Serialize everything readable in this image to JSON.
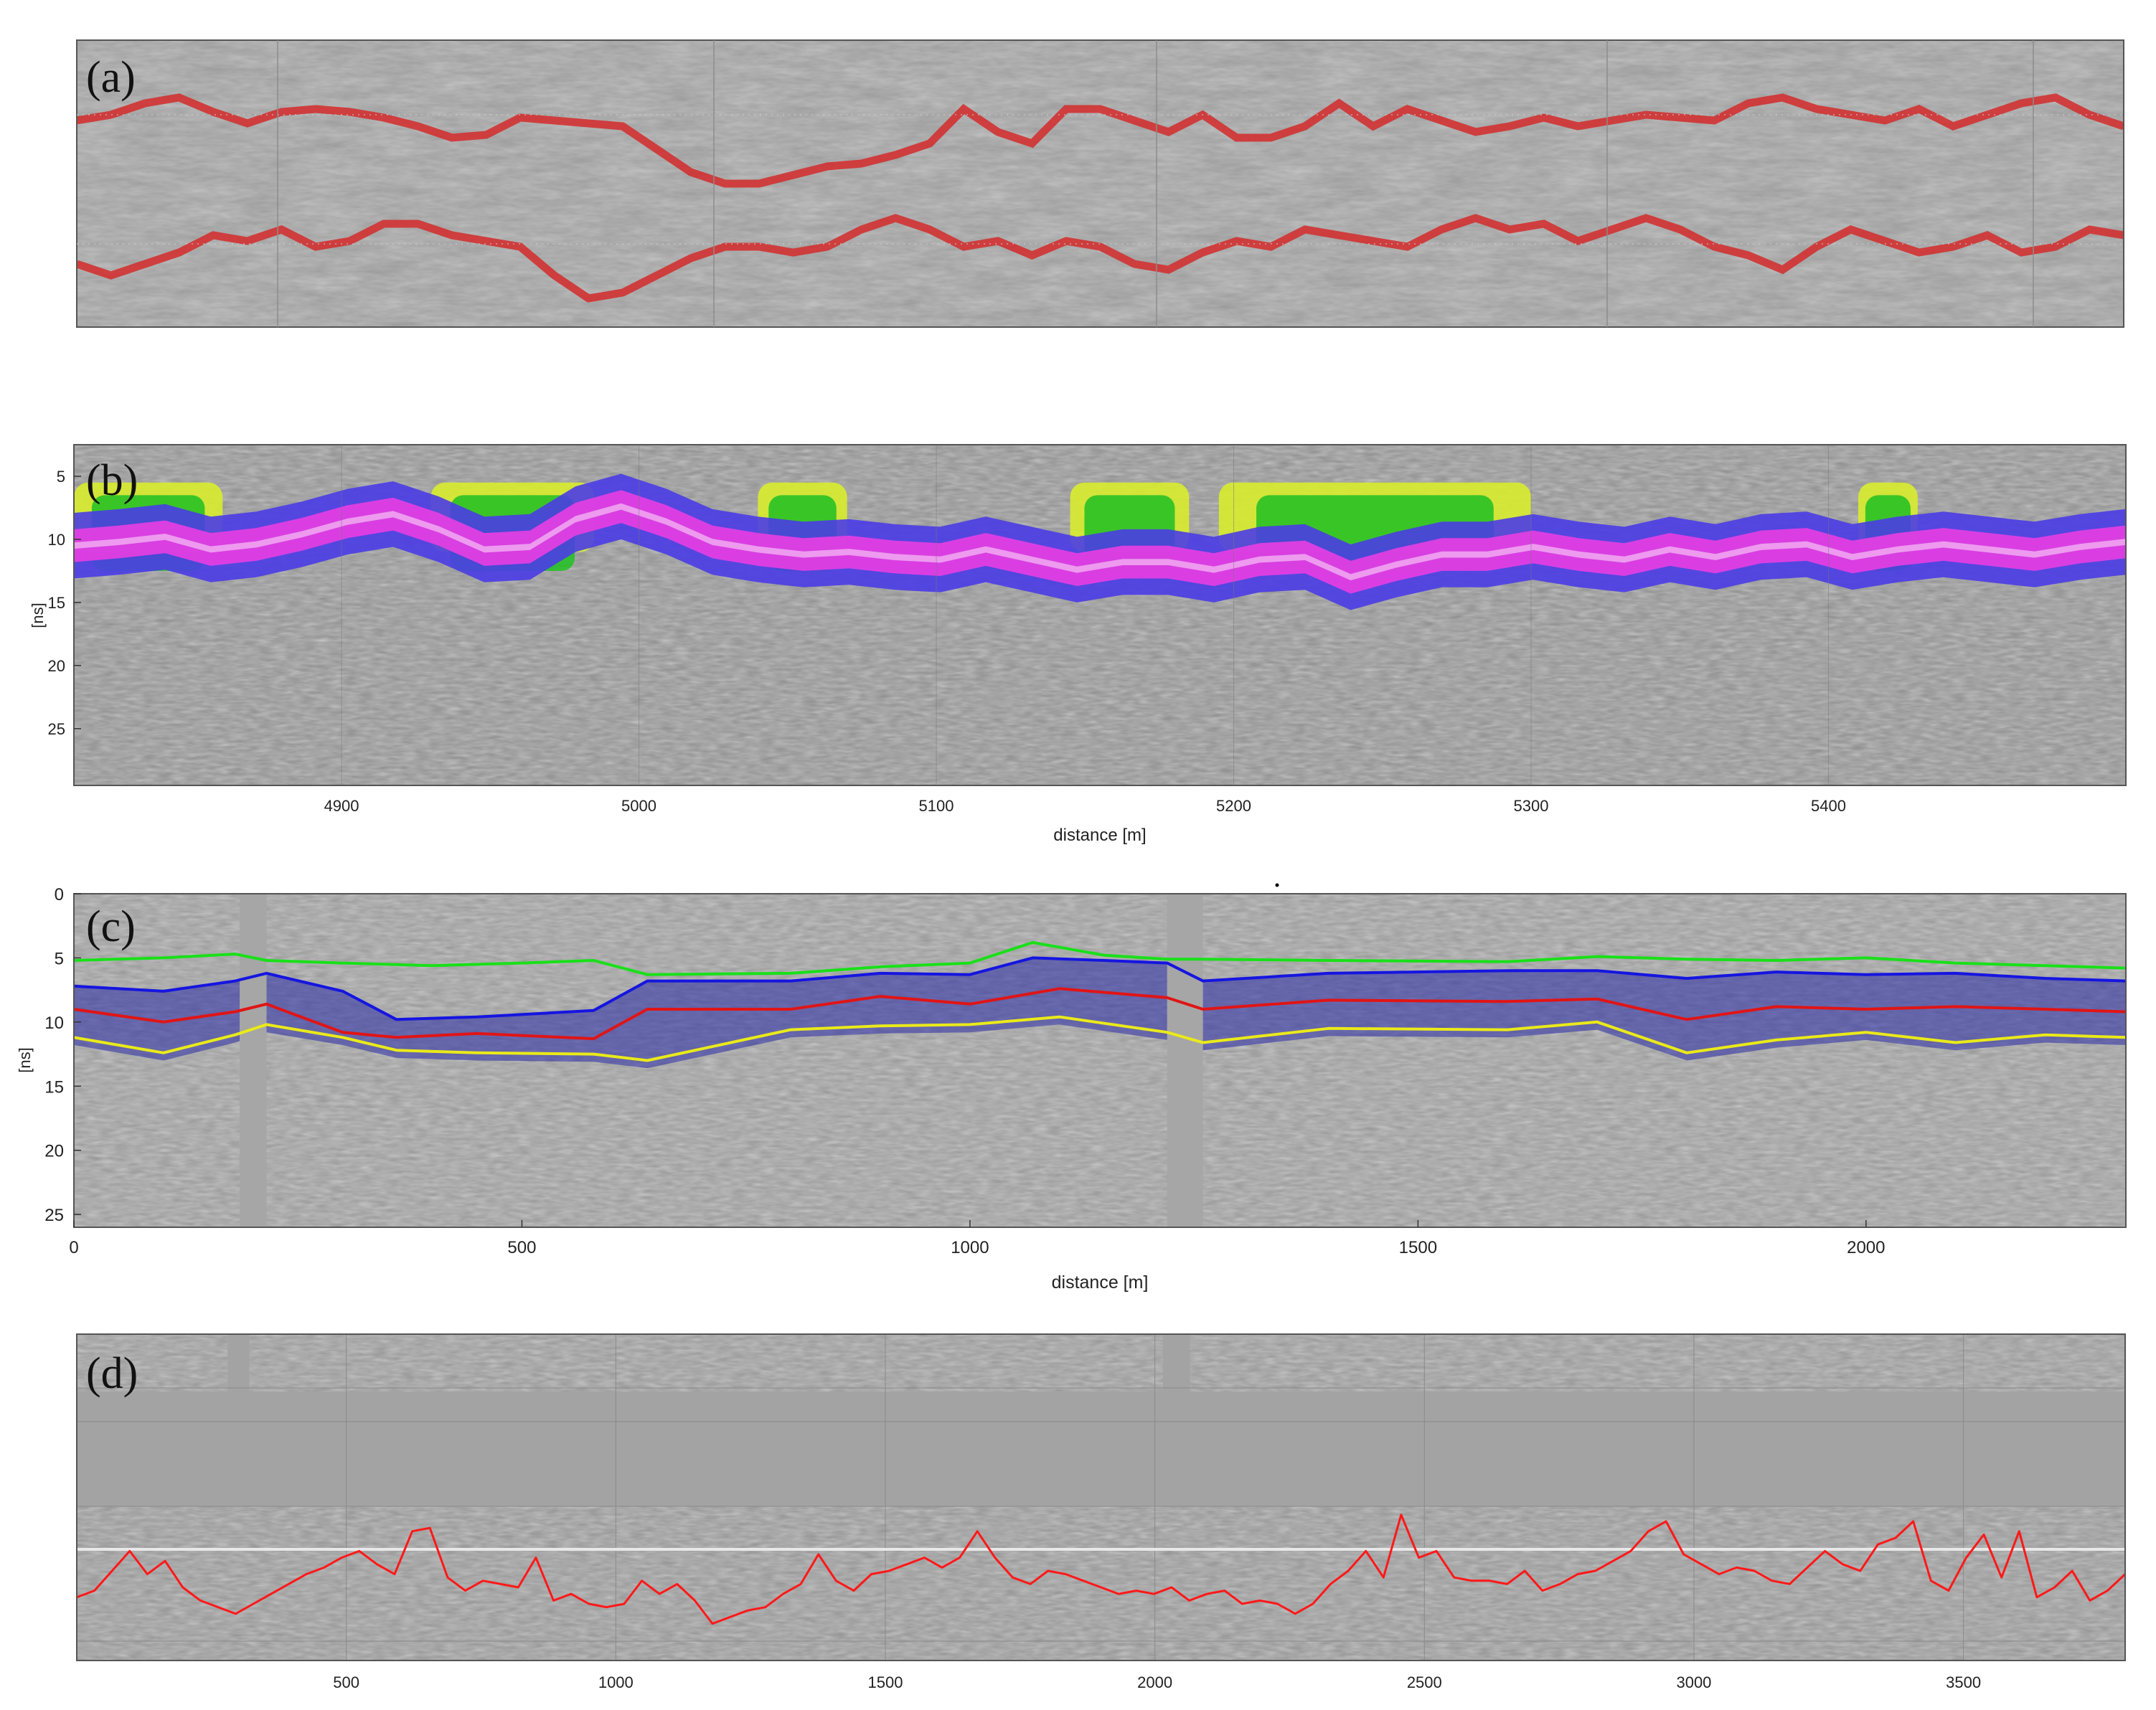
{
  "chart_data": [
    {
      "panel": "(a)",
      "type": "line",
      "background": "gpr-radargram-grayscale-banded",
      "series": [
        {
          "color": "#d42a2a",
          "y": [
            0.28,
            0.26,
            0.22,
            0.2,
            0.25,
            0.29,
            0.25,
            0.24,
            0.25,
            0.27,
            0.3,
            0.34,
            0.33,
            0.27,
            0.28,
            0.29,
            0.3,
            0.38,
            0.46,
            0.5,
            0.5,
            0.47,
            0.44,
            0.43,
            0.4,
            0.36,
            0.24,
            0.32,
            0.36,
            0.24,
            0.24,
            0.28,
            0.32,
            0.26,
            0.34,
            0.34,
            0.3,
            0.22,
            0.3,
            0.24,
            0.28,
            0.32,
            0.3,
            0.27,
            0.3,
            0.28,
            0.26,
            0.27,
            0.28,
            0.22,
            0.2,
            0.24,
            0.26,
            0.28,
            0.24,
            0.3,
            0.26,
            0.22,
            0.2,
            0.26,
            0.3
          ]
        },
        {
          "color": "#d42a2a",
          "y": [
            0.78,
            0.82,
            0.78,
            0.74,
            0.68,
            0.7,
            0.66,
            0.72,
            0.7,
            0.64,
            0.64,
            0.68,
            0.7,
            0.72,
            0.82,
            0.9,
            0.88,
            0.82,
            0.76,
            0.72,
            0.72,
            0.74,
            0.72,
            0.66,
            0.62,
            0.66,
            0.72,
            0.7,
            0.75,
            0.7,
            0.72,
            0.78,
            0.8,
            0.74,
            0.7,
            0.72,
            0.66,
            0.68,
            0.7,
            0.72,
            0.66,
            0.62,
            0.66,
            0.64,
            0.7,
            0.66,
            0.62,
            0.66,
            0.72,
            0.75,
            0.8,
            0.72,
            0.66,
            0.7,
            0.74,
            0.72,
            0.68,
            0.74,
            0.72,
            0.66,
            0.68
          ]
        }
      ]
    },
    {
      "panel": "(b)",
      "type": "heatmap",
      "xlabel": "distance [m]",
      "ylabel": "[ns]",
      "xlim": [
        4810,
        5500
      ],
      "ylim": [
        29.5,
        2.5
      ],
      "xticks": [
        "4900",
        "5000",
        "5100",
        "5200",
        "5300",
        "5400"
      ],
      "yticks": [
        "5",
        "10",
        "15",
        "20",
        "25"
      ],
      "colors": [
        "#d8ec2c",
        "#24c024",
        "#4a3ce6",
        "#e23ee2"
      ],
      "layer_center_ns": [
        10.5,
        10.2,
        9.8,
        10.8,
        10.4,
        9.6,
        8.6,
        8,
        9.2,
        10.8,
        10.6,
        8.4,
        7.4,
        8.6,
        10.2,
        10.8,
        11.2,
        11,
        11.4,
        11.6,
        10.8,
        11.6,
        12.4,
        11.8,
        11.8,
        12.4,
        11.6,
        11.4,
        13,
        12,
        11.2,
        11.2,
        10.6,
        11.2,
        11.6,
        10.8,
        11.4,
        10.6,
        10.4,
        11.4,
        10.8,
        10.4,
        10.8,
        11.2,
        10.6,
        10.2
      ],
      "clutter_segments_m": [
        [
          4810,
          4860
        ],
        [
          4930,
          4985
        ],
        [
          5040,
          5070
        ],
        [
          5145,
          5185
        ],
        [
          5195,
          5300
        ],
        [
          5410,
          5430
        ]
      ]
    },
    {
      "panel": "(c)",
      "type": "line",
      "xlabel": "distance [m]",
      "ylabel": "[ns]",
      "xlim": [
        0,
        2290
      ],
      "ylim": [
        26,
        0
      ],
      "xticks": [
        "0",
        "500",
        "1000",
        "1500",
        "2000"
      ],
      "yticks": [
        "0",
        "5",
        "10",
        "15",
        "20",
        "25"
      ],
      "gaps_m": [
        [
          185,
          215
        ],
        [
          1220,
          1260
        ]
      ],
      "series": [
        {
          "color": "#19e019",
          "points": [
            [
              0,
              5.2
            ],
            [
              100,
              5.0
            ],
            [
              180,
              4.7
            ],
            [
              215,
              5.2
            ],
            [
              300,
              5.4
            ],
            [
              400,
              5.6
            ],
            [
              500,
              5.4
            ],
            [
              580,
              5.2
            ],
            [
              640,
              6.3
            ],
            [
              800,
              6.2
            ],
            [
              900,
              5.7
            ],
            [
              1000,
              5.4
            ],
            [
              1070,
              3.8
            ],
            [
              1150,
              4.8
            ],
            [
              1220,
              5.1
            ],
            [
              1260,
              5.1
            ],
            [
              1400,
              5.2
            ],
            [
              1600,
              5.3
            ],
            [
              1700,
              4.9
            ],
            [
              1800,
              5.1
            ],
            [
              1900,
              5.2
            ],
            [
              2000,
              5.0
            ],
            [
              2100,
              5.4
            ],
            [
              2200,
              5.6
            ],
            [
              2290,
              5.8
            ]
          ]
        },
        {
          "color": "#1515e0",
          "points": [
            [
              0,
              7.2
            ],
            [
              100,
              7.6
            ],
            [
              180,
              6.8
            ],
            [
              215,
              6.2
            ],
            [
              300,
              7.6
            ],
            [
              360,
              9.8
            ],
            [
              450,
              9.6
            ],
            [
              580,
              9.1
            ],
            [
              640,
              6.8
            ],
            [
              800,
              6.8
            ],
            [
              900,
              6.2
            ],
            [
              1000,
              6.3
            ],
            [
              1070,
              5.0
            ],
            [
              1150,
              5.2
            ],
            [
              1220,
              5.4
            ],
            [
              1260,
              6.8
            ],
            [
              1400,
              6.2
            ],
            [
              1600,
              6.0
            ],
            [
              1700,
              6.0
            ],
            [
              1800,
              6.6
            ],
            [
              1900,
              6.1
            ],
            [
              2000,
              6.3
            ],
            [
              2100,
              6.2
            ],
            [
              2200,
              6.6
            ],
            [
              2290,
              6.8
            ]
          ]
        },
        {
          "color": "#e01515",
          "points": [
            [
              0,
              9.0
            ],
            [
              100,
              10.0
            ],
            [
              180,
              9.2
            ],
            [
              215,
              8.6
            ],
            [
              300,
              10.8
            ],
            [
              360,
              11.2
            ],
            [
              450,
              10.9
            ],
            [
              580,
              11.3
            ],
            [
              640,
              9.0
            ],
            [
              800,
              9.0
            ],
            [
              900,
              8.0
            ],
            [
              1000,
              8.6
            ],
            [
              1100,
              7.4
            ],
            [
              1220,
              8.1
            ],
            [
              1260,
              9.0
            ],
            [
              1400,
              8.3
            ],
            [
              1600,
              8.4
            ],
            [
              1700,
              8.2
            ],
            [
              1800,
              9.8
            ],
            [
              1900,
              8.8
            ],
            [
              2000,
              9.0
            ],
            [
              2100,
              8.8
            ],
            [
              2200,
              9.0
            ],
            [
              2290,
              9.2
            ]
          ]
        },
        {
          "color": "#eaea1a",
          "points": [
            [
              0,
              11.2
            ],
            [
              100,
              12.4
            ],
            [
              180,
              11.0
            ],
            [
              215,
              10.2
            ],
            [
              300,
              11.2
            ],
            [
              360,
              12.2
            ],
            [
              450,
              12.4
            ],
            [
              580,
              12.5
            ],
            [
              640,
              13.0
            ],
            [
              800,
              10.6
            ],
            [
              900,
              10.3
            ],
            [
              1000,
              10.2
            ],
            [
              1100,
              9.6
            ],
            [
              1220,
              10.8
            ],
            [
              1260,
              11.6
            ],
            [
              1400,
              10.5
            ],
            [
              1600,
              10.6
            ],
            [
              1700,
              10.0
            ],
            [
              1800,
              12.4
            ],
            [
              1900,
              11.4
            ],
            [
              2000,
              10.8
            ],
            [
              2100,
              11.6
            ],
            [
              2200,
              11.0
            ],
            [
              2290,
              11.2
            ]
          ]
        }
      ]
    },
    {
      "panel": "(d)",
      "type": "line",
      "xlim": [
        0,
        3800
      ],
      "xticks": [
        "500",
        "1000",
        "1500",
        "2000",
        "2500",
        "3000",
        "3500"
      ],
      "reference_line_color": "#e8e8e8",
      "series": [
        {
          "color": "#ff1818",
          "y": [
            0.34,
            0.38,
            0.5,
            0.62,
            0.48,
            0.56,
            0.4,
            0.32,
            0.28,
            0.24,
            0.3,
            0.36,
            0.42,
            0.48,
            0.52,
            0.58,
            0.62,
            0.54,
            0.48,
            0.74,
            0.76,
            0.46,
            0.38,
            0.44,
            0.42,
            0.4,
            0.58,
            0.32,
            0.36,
            0.3,
            0.28,
            0.3,
            0.44,
            0.36,
            0.42,
            0.32,
            0.18,
            0.22,
            0.26,
            0.28,
            0.36,
            0.42,
            0.6,
            0.44,
            0.38,
            0.48,
            0.5,
            0.54,
            0.58,
            0.52,
            0.58,
            0.74,
            0.58,
            0.46,
            0.42,
            0.5,
            0.48,
            0.44,
            0.4,
            0.36,
            0.38,
            0.36,
            0.4,
            0.32,
            0.36,
            0.38,
            0.3,
            0.32,
            0.3,
            0.24,
            0.3,
            0.42,
            0.5,
            0.62,
            0.46,
            0.84,
            0.58,
            0.62,
            0.46,
            0.44,
            0.44,
            0.42,
            0.5,
            0.38,
            0.42,
            0.48,
            0.5,
            0.56,
            0.62,
            0.74,
            0.8,
            0.6,
            0.54,
            0.48,
            0.52,
            0.5,
            0.44,
            0.42,
            0.52,
            0.62,
            0.54,
            0.5,
            0.66,
            0.7,
            0.8,
            0.44,
            0.38,
            0.58,
            0.72,
            0.46,
            0.74,
            0.34,
            0.4,
            0.5,
            0.32,
            0.38,
            0.48
          ]
        }
      ]
    }
  ]
}
